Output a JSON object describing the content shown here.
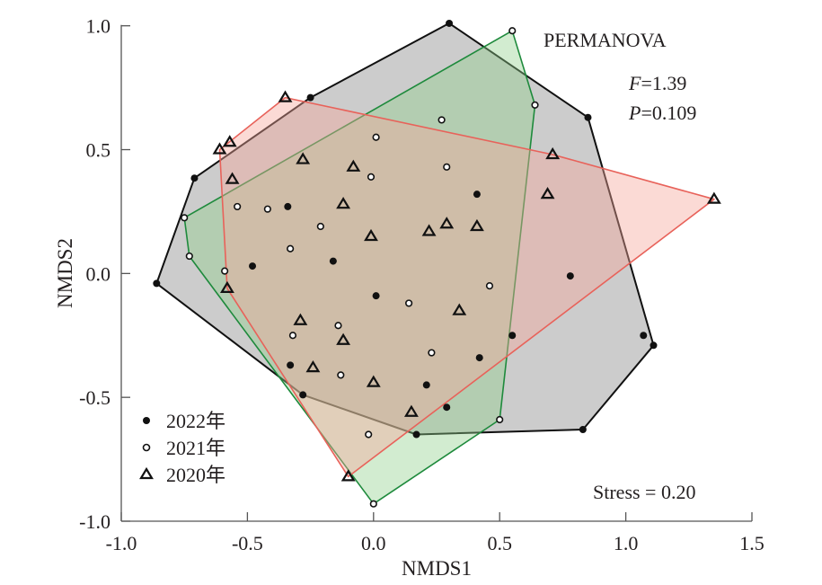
{
  "chart_data": {
    "type": "scatter",
    "title": "",
    "xlabel": "NMDS1",
    "ylabel": "NMDS2",
    "xlim": [
      -1.0,
      1.5
    ],
    "ylim": [
      -1.0,
      1.0
    ],
    "xticks": [
      -1.0,
      -0.5,
      0.0,
      0.5,
      1.0,
      1.5
    ],
    "xtick_labels": [
      "-1.0",
      "-0.5",
      "0.0",
      "0.5",
      "1.0",
      "1.5"
    ],
    "yticks": [
      1.0,
      0.5,
      0.0,
      -0.5,
      -1.0
    ],
    "ytick_labels": [
      "1.0",
      "0.5",
      "0.0",
      "-0.5",
      "-1.0"
    ],
    "grid": false,
    "legend_position": "bottom-left",
    "annotations": {
      "test": "PERMANOVA",
      "f_label": "F",
      "f_value": "=1.39",
      "p_label": "P",
      "p_value": "=0.109",
      "stress": "Stress = 0.20"
    },
    "series": [
      {
        "name": "2022年",
        "marker": "filled-circle",
        "hull_fill": "#9a9a9a",
        "hull_stroke": "#111111",
        "points": [
          [
            0.3,
            1.01
          ],
          [
            -0.25,
            0.71
          ],
          [
            -0.71,
            0.385
          ],
          [
            -0.86,
            -0.04
          ],
          [
            -0.34,
            0.27
          ],
          [
            -0.16,
            0.05
          ],
          [
            -0.48,
            0.03
          ],
          [
            0.01,
            -0.09
          ],
          [
            0.41,
            0.32
          ],
          [
            0.85,
            0.63
          ],
          [
            0.78,
            -0.01
          ],
          [
            0.55,
            -0.25
          ],
          [
            1.07,
            -0.25
          ],
          [
            1.11,
            -0.29
          ],
          [
            0.42,
            -0.34
          ],
          [
            0.29,
            -0.54
          ],
          [
            0.21,
            -0.45
          ],
          [
            -0.33,
            -0.37
          ],
          [
            -0.28,
            -0.49
          ],
          [
            0.17,
            -0.65
          ],
          [
            0.83,
            -0.63
          ]
        ]
      },
      {
        "name": "2021年",
        "marker": "open-circle",
        "hull_fill": "#8fd08a",
        "hull_stroke": "#1e8a3c",
        "points": [
          [
            0.55,
            0.98
          ],
          [
            0.64,
            0.68
          ],
          [
            0.27,
            0.62
          ],
          [
            0.01,
            0.55
          ],
          [
            0.29,
            0.43
          ],
          [
            -0.01,
            0.39
          ],
          [
            -0.75,
            0.225
          ],
          [
            -0.73,
            0.07
          ],
          [
            -0.54,
            0.27
          ],
          [
            -0.42,
            0.26
          ],
          [
            -0.21,
            0.19
          ],
          [
            -0.33,
            0.1
          ],
          [
            -0.59,
            0.01
          ],
          [
            0.46,
            -0.05
          ],
          [
            0.14,
            -0.12
          ],
          [
            -0.14,
            -0.21
          ],
          [
            -0.32,
            -0.25
          ],
          [
            0.23,
            -0.32
          ],
          [
            -0.13,
            -0.41
          ],
          [
            0.5,
            -0.59
          ],
          [
            -0.02,
            -0.65
          ],
          [
            0.0,
            -0.93
          ]
        ]
      },
      {
        "name": "2020年",
        "marker": "open-triangle",
        "hull_fill": "#f5a79c",
        "hull_stroke": "#e8625a",
        "points": [
          [
            -0.35,
            0.71
          ],
          [
            -0.57,
            0.53
          ],
          [
            -0.61,
            0.5
          ],
          [
            -0.56,
            0.38
          ],
          [
            -0.28,
            0.46
          ],
          [
            -0.08,
            0.43
          ],
          [
            -0.12,
            0.28
          ],
          [
            -0.01,
            0.15
          ],
          [
            0.29,
            0.2
          ],
          [
            0.22,
            0.17
          ],
          [
            0.41,
            0.19
          ],
          [
            0.71,
            0.48
          ],
          [
            0.69,
            0.32
          ],
          [
            1.35,
            0.3
          ],
          [
            -0.58,
            -0.06
          ],
          [
            -0.29,
            -0.19
          ],
          [
            -0.12,
            -0.27
          ],
          [
            -0.24,
            -0.38
          ],
          [
            0.0,
            -0.44
          ],
          [
            0.34,
            -0.15
          ],
          [
            0.15,
            -0.56
          ],
          [
            -0.1,
            -0.82
          ]
        ]
      }
    ]
  }
}
